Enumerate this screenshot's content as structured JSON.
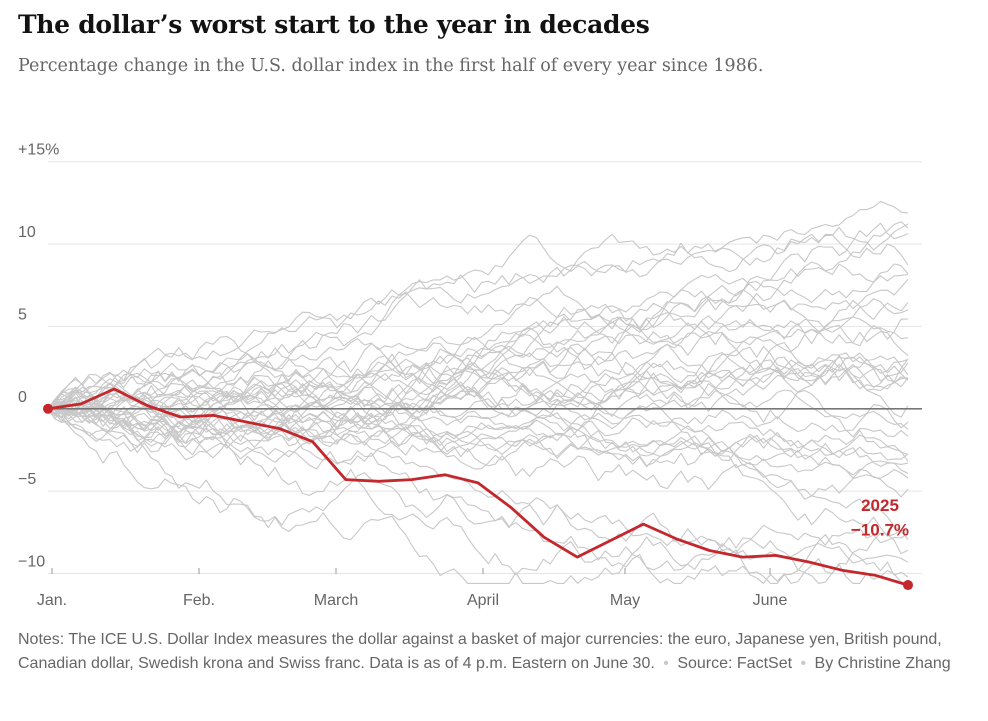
{
  "title": "The dollar’s worst start to the year in decades",
  "subtitle": "Percentage change in the U.S. dollar index in the first half of every year since 1986.",
  "notes": {
    "text": "Notes: The ICE U.S. Dollar Index measures the dollar against a basket of major currencies: the euro, Japanese yen, British pound, Canadian dollar, Swedish krona and Swiss franc. Data is as of 4 p.m. Eastern on June 30.",
    "separator": "•",
    "source": "Source: FactSet",
    "byline": "By Christine Zhang"
  },
  "colors": {
    "highlight": "#c4272c",
    "background_lines": "#c8c8c8",
    "zero_line": "#777777",
    "grid": "#e5e5e5",
    "tick_text": "#666666"
  },
  "chart_data": {
    "type": "line",
    "title": "",
    "xlabel": "",
    "ylabel": "",
    "x_ticks": [
      "Jan.",
      "Feb.",
      "March",
      "April",
      "May",
      "June"
    ],
    "y_ticks": [
      {
        "value": 15,
        "label": "+15%"
      },
      {
        "value": 10,
        "label": "10"
      },
      {
        "value": 5,
        "label": "5"
      },
      {
        "value": 0,
        "label": "0"
      },
      {
        "value": -5,
        "label": "−5"
      },
      {
        "value": -10,
        "label": "−10"
      }
    ],
    "ylim": [
      -11,
      16.5
    ],
    "highlight_series": {
      "name": "2025",
      "label_year": "2025",
      "label_value": "−10.7%",
      "x": [
        "Jan. 1",
        "Jan. 8",
        "Jan. 15",
        "Jan. 22",
        "Jan. 29",
        "Feb. 5",
        "Feb. 12",
        "Feb. 19",
        "Feb. 26",
        "March 5",
        "March 12",
        "March 19",
        "March 26",
        "April 2",
        "April 9",
        "April 16",
        "April 23",
        "April 30",
        "May 7",
        "May 14",
        "May 21",
        "May 28",
        "June 4",
        "June 11",
        "June 18",
        "June 25",
        "June 30"
      ],
      "values": [
        0,
        0.3,
        1.2,
        0.2,
        -0.5,
        -0.4,
        -0.8,
        -1.2,
        -2.0,
        -4.3,
        -4.4,
        -4.3,
        -4.0,
        -4.5,
        -6.0,
        -7.8,
        -9.0,
        -8.0,
        -7.0,
        -7.9,
        -8.6,
        -9.0,
        -8.9,
        -9.3,
        -9.8,
        -10.1,
        -10.7
      ]
    },
    "background_series_count": 39
  }
}
